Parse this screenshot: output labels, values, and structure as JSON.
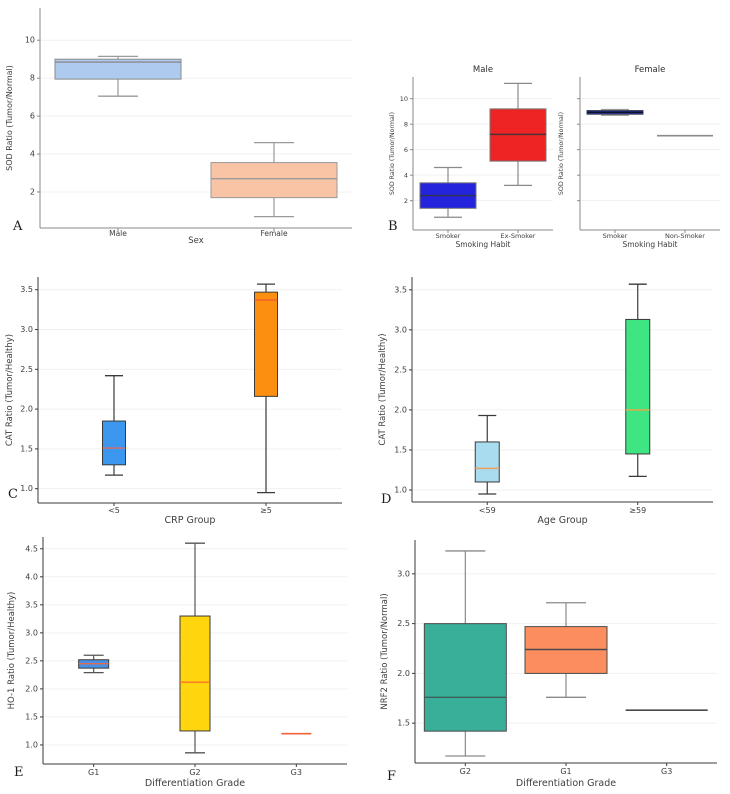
{
  "chart_data": [
    {
      "letter": "A",
      "type": "boxplot",
      "axes": [
        {
          "title": "",
          "ylabel": "SOD Ratio (Tumor/Normal)",
          "xlabel": "Sex",
          "ylim": [
            0.1,
            11.7
          ],
          "yticks": [
            2,
            4,
            6,
            8,
            10
          ],
          "ytick_labels": [
            "2",
            "4",
            "6",
            "8",
            "10"
          ],
          "grid": true,
          "categories": [
            "Male",
            "Female"
          ],
          "boxes": [
            {
              "category": "Male",
              "whislo": 7.05,
              "q1": 7.95,
              "med": 8.85,
              "q3": 9.0,
              "whishi": 9.15,
              "fill": "#aecbef",
              "edge": "#8a8a8a",
              "median_color": "#8a8a8a",
              "whisker": "#9a9a9a"
            },
            {
              "category": "Female",
              "whislo": 0.7,
              "q1": 1.7,
              "med": 2.7,
              "q3": 3.55,
              "whishi": 4.6,
              "fill": "#f9c3a6",
              "edge": "#9a9a9a",
              "median_color": "#9a9a9a",
              "whisker": "#9a9a9a"
            }
          ]
        }
      ]
    },
    {
      "letter": "B",
      "type": "boxplot",
      "axes": [
        {
          "title": "Male",
          "ylabel": "SOD Ratio (Tumor/Normal)",
          "xlabel": "Smoking Habit",
          "ylim": [
            -0.3,
            11.7
          ],
          "yticks": [
            2,
            4,
            6,
            8,
            10
          ],
          "ytick_labels": [
            "2",
            "4",
            "6",
            "8",
            "10"
          ],
          "grid": true,
          "categories": [
            "Smoker",
            "Ex-Smoker"
          ],
          "boxes": [
            {
              "category": "Smoker",
              "whislo": 0.7,
              "q1": 1.4,
              "med": 2.4,
              "q3": 3.4,
              "whishi": 4.6,
              "fill": "#2424dc",
              "edge": "#777777",
              "median_color": "#33334a",
              "whisker": "#8a8a8a"
            },
            {
              "category": "Ex-Smoker",
              "whislo": 3.2,
              "q1": 5.1,
              "med": 7.2,
              "q3": 9.2,
              "whishi": 11.2,
              "fill": "#ee2424",
              "edge": "#777777",
              "median_color": "#4a3333",
              "whisker": "#8a8a8a"
            }
          ]
        },
        {
          "title": "Female",
          "ylabel": "SOD Ratio (Tumor/Normal)",
          "xlabel": "Smoking Habit",
          "ylim": [
            -0.3,
            11.7
          ],
          "yticks": [
            2,
            4,
            6,
            8,
            10
          ],
          "ytick_labels": [],
          "grid": true,
          "categories": [
            "Smoker",
            "Non-Smoker"
          ],
          "boxes": [
            {
              "category": "Smoker",
              "whislo": 8.7,
              "q1": 8.78,
              "med": 8.93,
              "q3": 9.07,
              "whishi": 9.15,
              "fill": "#1c2f8c",
              "edge": "#44445a",
              "median_color": "#111133",
              "whisker": "#999999"
            },
            {
              "category": "Non-Smoker",
              "type": "line",
              "med": 7.1,
              "median_color": "#8a8a8a"
            }
          ]
        }
      ]
    },
    {
      "letter": "C",
      "type": "boxplot",
      "axes": [
        {
          "title": "",
          "ylabel": "CAT Ratio (Tumor/Healthy)",
          "xlabel": "CRP Group",
          "ylim": [
            0.82,
            3.66
          ],
          "yticks": [
            1.0,
            1.5,
            2.0,
            2.5,
            3.0,
            3.5
          ],
          "ytick_labels": [
            "1.0",
            "1.5",
            "2.0",
            "2.5",
            "3.0",
            "3.5"
          ],
          "grid": true,
          "categories": [
            "<5",
            "≥5"
          ],
          "boxes": [
            {
              "category": "<5",
              "whislo": 1.17,
              "q1": 1.3,
              "med": 1.51,
              "q3": 1.85,
              "whishi": 2.42,
              "fill": "#3b98ee",
              "edge": "#3a3a3a",
              "median_color": "#e0685a",
              "whisker": "#3a3a3a"
            },
            {
              "category": "≥5",
              "whislo": 0.95,
              "q1": 2.16,
              "med": 3.37,
              "q3": 3.47,
              "whishi": 3.57,
              "fill": "#fd8f10",
              "edge": "#3a3a3a",
              "median_color": "#ef5b2e",
              "whisker": "#3a3a3a"
            }
          ]
        }
      ]
    },
    {
      "letter": "D",
      "type": "boxplot",
      "axes": [
        {
          "title": "",
          "ylabel": "CAT Ratio (Tumor/Healthy)",
          "xlabel": "Age Group",
          "ylim": [
            0.85,
            3.66
          ],
          "yticks": [
            1.0,
            1.5,
            2.0,
            2.5,
            3.0,
            3.5
          ],
          "ytick_labels": [
            "1.0",
            "1.5",
            "2.0",
            "2.5",
            "3.0",
            "3.5"
          ],
          "grid": true,
          "categories": [
            "<59",
            "≥59"
          ],
          "boxes": [
            {
              "category": "<59",
              "whislo": 0.95,
              "q1": 1.1,
              "med": 1.27,
              "q3": 1.6,
              "whishi": 1.93,
              "fill": "#a8dcee",
              "edge": "#3a3a3a",
              "median_color": "#f0a05a",
              "whisker": "#3a3a3a"
            },
            {
              "category": "≥59",
              "whislo": 1.17,
              "q1": 1.45,
              "med": 2.0,
              "q3": 3.13,
              "whishi": 3.57,
              "fill": "#40e583",
              "edge": "#3a3a3a",
              "median_color": "#f0a545",
              "whisker": "#3a3a3a"
            }
          ]
        }
      ]
    },
    {
      "letter": "E",
      "type": "boxplot",
      "axes": [
        {
          "title": "",
          "ylabel": "HO-1 Ratio (Tumor/Healthy)",
          "xlabel": "Differentiation Grade",
          "ylim": [
            0.66,
            4.71
          ],
          "yticks": [
            1.0,
            1.5,
            2.0,
            2.5,
            3.0,
            3.5,
            4.0,
            4.5
          ],
          "ytick_labels": [
            "1.0",
            "1.5",
            "2.0",
            "2.5",
            "3.0",
            "3.5",
            "4.0",
            "4.5"
          ],
          "grid": true,
          "categories": [
            "G1",
            "G2",
            "G3"
          ],
          "boxes": [
            {
              "category": "G1",
              "whislo": 2.29,
              "q1": 2.37,
              "med": 2.45,
              "q3": 2.52,
              "whishi": 2.6,
              "fill": "#4a90e2",
              "edge": "#3a3a3a",
              "median_color": "#e06a50",
              "whisker": "#555555"
            },
            {
              "category": "G2",
              "whislo": 0.86,
              "q1": 1.25,
              "med": 2.12,
              "q3": 3.3,
              "whishi": 4.6,
              "fill": "#ffd60e",
              "edge": "#3a3a3a",
              "median_color": "#ff7326",
              "whisker": "#555555"
            },
            {
              "category": "G3",
              "type": "line",
              "med": 1.2,
              "median_color": "#f4623a"
            }
          ]
        }
      ]
    },
    {
      "letter": "F",
      "type": "boxplot",
      "axes": [
        {
          "title": "",
          "ylabel": "NRF2 Ratio (Tumor/Normal)",
          "xlabel": "Differentiation Grade",
          "ylim": [
            1.1,
            3.34
          ],
          "yticks": [
            1.5,
            2.0,
            2.5,
            3.0
          ],
          "ytick_labels": [
            "1.5",
            "2.0",
            "2.5",
            "3.0"
          ],
          "grid": true,
          "categories": [
            "G2",
            "G1",
            "G3"
          ],
          "boxes": [
            {
              "category": "G2",
              "whislo": 1.17,
              "q1": 1.42,
              "med": 1.76,
              "q3": 2.5,
              "whishi": 3.23,
              "fill": "#39ae99",
              "edge": "#4a4a4a",
              "median_color": "#3c5f58",
              "whisker": "#8a8a8a"
            },
            {
              "category": "G1",
              "whislo": 1.76,
              "q1": 2.0,
              "med": 2.24,
              "q3": 2.47,
              "whishi": 2.71,
              "fill": "#fb8d5f",
              "edge": "#4a4a4a",
              "median_color": "#4a4a4a",
              "whisker": "#8a8a8a"
            },
            {
              "category": "G3",
              "type": "line",
              "med": 1.63,
              "median_color": "#4a4a4a"
            }
          ]
        }
      ]
    }
  ]
}
